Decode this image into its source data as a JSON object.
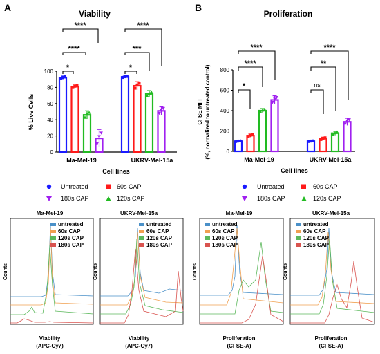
{
  "panels": {
    "A": {
      "letter": "A",
      "title": "Viability",
      "ylabel": "% Live Cells",
      "xlabel": "Cell lines",
      "yticks": [
        "0",
        "20",
        "40",
        "60",
        "80",
        "100"
      ],
      "groups": [
        "Ma-Mel-19",
        "UKRV-Mel-15a"
      ],
      "sig": {
        "g1": [
          "*",
          "****",
          "****"
        ],
        "g2": [
          "*",
          "***",
          "****"
        ]
      }
    },
    "B": {
      "letter": "B",
      "title": "Proliferation",
      "ylabel1": "CFSE MFI",
      "ylabel2": "(%, normalized to untreated control)",
      "xlabel": "Cell lines",
      "yticks": [
        "0",
        "200",
        "400",
        "600",
        "800"
      ],
      "groups": [
        "Ma-Mel-19",
        "UKRV-Mel-15a"
      ],
      "sig": {
        "g1": [
          "*",
          "****",
          "****"
        ],
        "g2": [
          "ns",
          "**",
          "****"
        ]
      }
    }
  },
  "legend": {
    "untreated": "Untreated",
    "cap60": "60s CAP",
    "cap180": "180s CAP",
    "cap120": "120s CAP"
  },
  "colors": {
    "untreated": "#1a1aff",
    "cap60": "#ff1a1a",
    "cap120": "#22bb22",
    "cap180": "#a020f0",
    "hist_untreated": "#4a90c8",
    "hist_60": "#f0a050",
    "hist_120": "#5cb85c",
    "hist_180": "#d9534f"
  },
  "histograms": {
    "legend": [
      "untreated",
      "60s CAP",
      "120s CAP",
      "180s CAP"
    ],
    "ylabel": "Counts",
    "plots": [
      {
        "title": "Ma-Mel-19",
        "xlabel1": "Viability",
        "xlabel2": "(APC-Cy7)"
      },
      {
        "title": "UKRV-Mel-15a",
        "xlabel1": "Viability",
        "xlabel2": "(APC-Cy7)"
      },
      {
        "title": "Ma-Mel-19",
        "xlabel1": "Proliferation",
        "xlabel2": "(CFSE-A)"
      },
      {
        "title": "UKRV-Mel-15a",
        "xlabel1": "Proliferation",
        "xlabel2": "(CFSE-A)"
      }
    ]
  },
  "chart_data": [
    {
      "type": "bar",
      "title": "Viability",
      "xlabel": "Cell lines",
      "ylabel": "% Live Cells",
      "ylim": [
        0,
        100
      ],
      "categories": [
        "Ma-Mel-19",
        "UKRV-Mel-15a"
      ],
      "series": [
        {
          "name": "Untreated",
          "values": [
            92,
            93
          ],
          "errors": [
            2,
            1
          ]
        },
        {
          "name": "60s CAP",
          "values": [
            81,
            82
          ],
          "errors": [
            2,
            5
          ]
        },
        {
          "name": "120s CAP",
          "values": [
            46,
            72
          ],
          "errors": [
            5,
            4
          ]
        },
        {
          "name": "180s CAP",
          "values": [
            17,
            51
          ],
          "errors": [
            11,
            5
          ]
        }
      ]
    },
    {
      "type": "bar",
      "title": "Proliferation",
      "xlabel": "Cell lines",
      "ylabel": "CFSE MFI (%, normalized to untreated control)",
      "ylim": [
        0,
        800
      ],
      "categories": [
        "Ma-Mel-19",
        "UKRV-Mel-15a"
      ],
      "series": [
        {
          "name": "Untreated",
          "values": [
            100,
            100
          ],
          "errors": [
            5,
            5
          ]
        },
        {
          "name": "60s CAP",
          "values": [
            155,
            125
          ],
          "errors": [
            15,
            15
          ]
        },
        {
          "name": "120s CAP",
          "values": [
            400,
            178
          ],
          "errors": [
            20,
            20
          ]
        },
        {
          "name": "180s CAP",
          "values": [
            505,
            290
          ],
          "errors": [
            40,
            35
          ]
        }
      ]
    }
  ]
}
